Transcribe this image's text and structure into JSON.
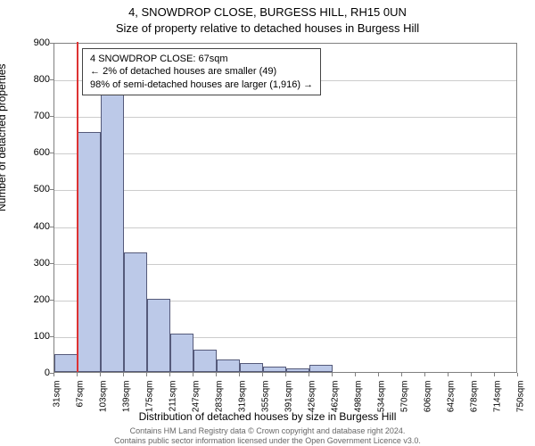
{
  "chart": {
    "type": "histogram",
    "title_line1": "4, SNOWDROP CLOSE, BURGESS HILL, RH15 0UN",
    "title_line2": "Size of property relative to detached houses in Burgess Hill",
    "y_axis_label": "Number of detached properties",
    "x_axis_label": "Distribution of detached houses by size in Burgess Hill",
    "y_max": 900,
    "y_tick_step": 100,
    "y_ticks": [
      0,
      100,
      200,
      300,
      400,
      500,
      600,
      700,
      800,
      900
    ],
    "x_ticks": [
      "31sqm",
      "67sqm",
      "103sqm",
      "139sqm",
      "175sqm",
      "211sqm",
      "247sqm",
      "283sqm",
      "319sqm",
      "355sqm",
      "391sqm",
      "426sqm",
      "462sqm",
      "498sqm",
      "534sqm",
      "570sqm",
      "606sqm",
      "642sqm",
      "678sqm",
      "714sqm",
      "750sqm"
    ],
    "bar_values": [
      49,
      655,
      760,
      325,
      200,
      105,
      60,
      35,
      25,
      15,
      10,
      20,
      0,
      0,
      0,
      0,
      0,
      0,
      0,
      0
    ],
    "bar_color": "#bcc9e8",
    "bar_border_color": "#555a7a",
    "marker_color": "#dd3333",
    "marker_x": 67,
    "x_min": 31,
    "x_max": 750,
    "plot_background": "#ffffff",
    "grid_color": "#cccccc",
    "info_box": {
      "line1": "4 SNOWDROP CLOSE: 67sqm",
      "line2": "← 2% of detached houses are smaller (49)",
      "line3": "98% of semi-detached houses are larger (1,916) →"
    },
    "footer": {
      "line1": "Contains HM Land Registry data © Crown copyright and database right 2024.",
      "line2": "Contains public sector information licensed under the Open Government Licence v3.0."
    }
  }
}
